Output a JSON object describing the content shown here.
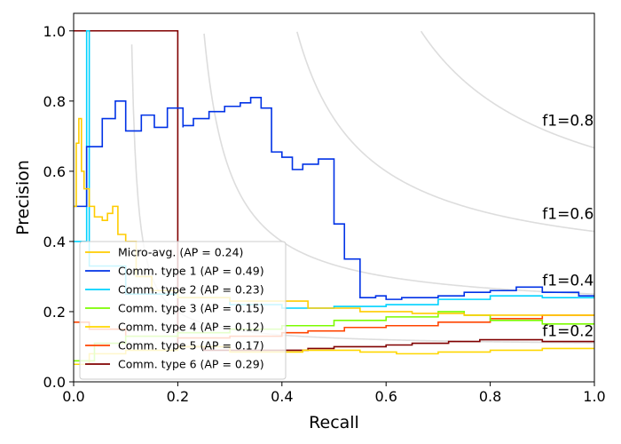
{
  "chart_data": {
    "type": "line",
    "xlabel": "Recall",
    "ylabel": "Precision",
    "xlim": [
      0.0,
      1.0
    ],
    "ylim": [
      0.0,
      1.05
    ],
    "x_ticks": [
      0.0,
      0.2,
      0.4,
      0.6,
      0.8,
      1.0
    ],
    "x_tick_labels": [
      "0.0",
      "0.2",
      "0.4",
      "0.6",
      "0.8",
      "1.0"
    ],
    "y_ticks": [
      0.0,
      0.2,
      0.4,
      0.6,
      0.8,
      1.0
    ],
    "y_tick_labels": [
      "0.0",
      "0.2",
      "0.4",
      "0.6",
      "0.8",
      "1.0"
    ],
    "legend_position": "lower-left",
    "iso_f1": {
      "color": "#dddddd",
      "curves": [
        {
          "f1": 0.2,
          "label": "f1=0.2",
          "label_y": 0.145
        },
        {
          "f1": 0.4,
          "label": "f1=0.4",
          "label_y": 0.29
        },
        {
          "f1": 0.6,
          "label": "f1=0.6",
          "label_y": 0.48
        },
        {
          "f1": 0.8,
          "label": "f1=0.8",
          "label_y": 0.745
        }
      ]
    },
    "series": [
      {
        "name": "Comm. type 6 (AP = 0.29)",
        "color": "#800000",
        "points": [
          [
            0.0,
            1.0
          ],
          [
            0.2,
            1.0
          ],
          [
            0.2,
            0.1
          ],
          [
            0.25,
            0.1
          ],
          [
            0.25,
            0.09
          ],
          [
            0.45,
            0.09
          ],
          [
            0.45,
            0.095
          ],
          [
            0.5,
            0.095
          ],
          [
            0.5,
            0.1
          ],
          [
            0.6,
            0.1
          ],
          [
            0.6,
            0.105
          ],
          [
            0.65,
            0.105
          ],
          [
            0.65,
            0.11
          ],
          [
            0.72,
            0.11
          ],
          [
            0.72,
            0.115
          ],
          [
            0.78,
            0.115
          ],
          [
            0.78,
            0.12
          ],
          [
            0.9,
            0.12
          ],
          [
            0.9,
            0.115
          ],
          [
            0.95,
            0.115
          ],
          [
            0.95,
            0.115
          ],
          [
            1.0,
            0.115
          ]
        ]
      },
      {
        "name": "Comm. type 5 (AP = 0.17)",
        "color": "#ff4500",
        "points": [
          [
            0.0,
            0.17
          ],
          [
            0.03,
            0.17
          ],
          [
            0.03,
            0.15
          ],
          [
            0.1,
            0.15
          ],
          [
            0.1,
            0.13
          ],
          [
            0.2,
            0.13
          ],
          [
            0.2,
            0.125
          ],
          [
            0.3,
            0.125
          ],
          [
            0.3,
            0.13
          ],
          [
            0.4,
            0.13
          ],
          [
            0.4,
            0.14
          ],
          [
            0.45,
            0.14
          ],
          [
            0.45,
            0.145
          ],
          [
            0.52,
            0.145
          ],
          [
            0.52,
            0.155
          ],
          [
            0.6,
            0.155
          ],
          [
            0.6,
            0.16
          ],
          [
            0.7,
            0.16
          ],
          [
            0.7,
            0.17
          ],
          [
            0.8,
            0.17
          ],
          [
            0.8,
            0.18
          ],
          [
            0.9,
            0.18
          ],
          [
            0.9,
            0.19
          ],
          [
            1.0,
            0.19
          ]
        ]
      },
      {
        "name": "Comm. type 4 (AP = 0.12)",
        "color": "#ffd700",
        "points": [
          [
            0.0,
            0.05
          ],
          [
            0.03,
            0.05
          ],
          [
            0.03,
            0.08
          ],
          [
            0.1,
            0.08
          ],
          [
            0.1,
            0.09
          ],
          [
            0.2,
            0.09
          ],
          [
            0.2,
            0.1
          ],
          [
            0.3,
            0.1
          ],
          [
            0.3,
            0.085
          ],
          [
            0.44,
            0.085
          ],
          [
            0.44,
            0.09
          ],
          [
            0.55,
            0.09
          ],
          [
            0.55,
            0.085
          ],
          [
            0.62,
            0.085
          ],
          [
            0.62,
            0.08
          ],
          [
            0.7,
            0.08
          ],
          [
            0.7,
            0.085
          ],
          [
            0.8,
            0.085
          ],
          [
            0.8,
            0.09
          ],
          [
            0.9,
            0.09
          ],
          [
            0.9,
            0.095
          ],
          [
            1.0,
            0.095
          ]
        ]
      },
      {
        "name": "Comm. type 3 (AP = 0.15)",
        "color": "#7cfc00",
        "points": [
          [
            0.0,
            0.06
          ],
          [
            0.04,
            0.06
          ],
          [
            0.04,
            0.11
          ],
          [
            0.1,
            0.11
          ],
          [
            0.1,
            0.13
          ],
          [
            0.2,
            0.13
          ],
          [
            0.2,
            0.14
          ],
          [
            0.3,
            0.14
          ],
          [
            0.3,
            0.15
          ],
          [
            0.4,
            0.15
          ],
          [
            0.4,
            0.16
          ],
          [
            0.5,
            0.16
          ],
          [
            0.5,
            0.175
          ],
          [
            0.6,
            0.175
          ],
          [
            0.6,
            0.185
          ],
          [
            0.7,
            0.185
          ],
          [
            0.7,
            0.2
          ],
          [
            0.75,
            0.2
          ],
          [
            0.75,
            0.19
          ],
          [
            0.8,
            0.19
          ],
          [
            0.8,
            0.175
          ],
          [
            0.9,
            0.175
          ],
          [
            0.9,
            0.165
          ],
          [
            1.0,
            0.165
          ]
        ]
      },
      {
        "name": "Comm. type 2 (AP = 0.23)",
        "color": "#00d2ff",
        "points": [
          [
            0.0,
            0.4
          ],
          [
            0.025,
            0.4
          ],
          [
            0.025,
            1.0
          ],
          [
            0.03,
            1.0
          ],
          [
            0.03,
            0.33
          ],
          [
            0.1,
            0.33
          ],
          [
            0.1,
            0.25
          ],
          [
            0.2,
            0.25
          ],
          [
            0.2,
            0.24
          ],
          [
            0.3,
            0.24
          ],
          [
            0.3,
            0.22
          ],
          [
            0.4,
            0.22
          ],
          [
            0.4,
            0.21
          ],
          [
            0.5,
            0.21
          ],
          [
            0.5,
            0.215
          ],
          [
            0.6,
            0.215
          ],
          [
            0.6,
            0.22
          ],
          [
            0.7,
            0.22
          ],
          [
            0.7,
            0.235
          ],
          [
            0.8,
            0.235
          ],
          [
            0.8,
            0.245
          ],
          [
            0.9,
            0.245
          ],
          [
            0.9,
            0.24
          ],
          [
            1.0,
            0.24
          ]
        ]
      },
      {
        "name": "Comm. type 1 (AP = 0.49)",
        "color": "#0032e6",
        "points": [
          [
            0.0,
            0.5
          ],
          [
            0.025,
            0.5
          ],
          [
            0.025,
            0.67
          ],
          [
            0.055,
            0.67
          ],
          [
            0.055,
            0.75
          ],
          [
            0.08,
            0.75
          ],
          [
            0.08,
            0.8
          ],
          [
            0.1,
            0.8
          ],
          [
            0.1,
            0.715
          ],
          [
            0.13,
            0.715
          ],
          [
            0.13,
            0.76
          ],
          [
            0.155,
            0.76
          ],
          [
            0.155,
            0.725
          ],
          [
            0.18,
            0.725
          ],
          [
            0.18,
            0.78
          ],
          [
            0.21,
            0.78
          ],
          [
            0.21,
            0.725
          ],
          [
            0.21,
            0.725
          ],
          [
            0.21,
            0.73
          ],
          [
            0.23,
            0.73
          ],
          [
            0.23,
            0.75
          ],
          [
            0.26,
            0.75
          ],
          [
            0.26,
            0.77
          ],
          [
            0.29,
            0.77
          ],
          [
            0.29,
            0.785
          ],
          [
            0.32,
            0.785
          ],
          [
            0.32,
            0.795
          ],
          [
            0.34,
            0.795
          ],
          [
            0.34,
            0.81
          ],
          [
            0.36,
            0.81
          ],
          [
            0.36,
            0.78
          ],
          [
            0.38,
            0.78
          ],
          [
            0.38,
            0.655
          ],
          [
            0.4,
            0.655
          ],
          [
            0.4,
            0.64
          ],
          [
            0.42,
            0.64
          ],
          [
            0.42,
            0.605
          ],
          [
            0.44,
            0.605
          ],
          [
            0.44,
            0.62
          ],
          [
            0.47,
            0.62
          ],
          [
            0.47,
            0.635
          ],
          [
            0.5,
            0.635
          ],
          [
            0.5,
            0.45
          ],
          [
            0.52,
            0.45
          ],
          [
            0.52,
            0.35
          ],
          [
            0.55,
            0.35
          ],
          [
            0.55,
            0.24
          ],
          [
            0.58,
            0.24
          ],
          [
            0.58,
            0.245
          ],
          [
            0.6,
            0.245
          ],
          [
            0.6,
            0.235
          ],
          [
            0.63,
            0.235
          ],
          [
            0.63,
            0.24
          ],
          [
            0.7,
            0.24
          ],
          [
            0.7,
            0.245
          ],
          [
            0.75,
            0.245
          ],
          [
            0.75,
            0.255
          ],
          [
            0.8,
            0.255
          ],
          [
            0.8,
            0.26
          ],
          [
            0.85,
            0.26
          ],
          [
            0.85,
            0.27
          ],
          [
            0.9,
            0.27
          ],
          [
            0.9,
            0.255
          ],
          [
            0.97,
            0.255
          ],
          [
            0.97,
            0.245
          ],
          [
            1.0,
            0.245
          ]
        ]
      },
      {
        "name": "Micro-avg. (AP = 0.24)",
        "color": "#ffcc00",
        "points": [
          [
            0.0,
            0.5
          ],
          [
            0.005,
            0.5
          ],
          [
            0.005,
            0.68
          ],
          [
            0.01,
            0.68
          ],
          [
            0.01,
            0.75
          ],
          [
            0.015,
            0.75
          ],
          [
            0.015,
            0.6
          ],
          [
            0.02,
            0.6
          ],
          [
            0.02,
            0.55
          ],
          [
            0.03,
            0.55
          ],
          [
            0.03,
            0.5
          ],
          [
            0.04,
            0.5
          ],
          [
            0.04,
            0.47
          ],
          [
            0.055,
            0.47
          ],
          [
            0.055,
            0.46
          ],
          [
            0.065,
            0.46
          ],
          [
            0.065,
            0.48
          ],
          [
            0.075,
            0.48
          ],
          [
            0.075,
            0.5
          ],
          [
            0.085,
            0.5
          ],
          [
            0.085,
            0.42
          ],
          [
            0.1,
            0.42
          ],
          [
            0.1,
            0.4
          ],
          [
            0.12,
            0.4
          ],
          [
            0.12,
            0.3
          ],
          [
            0.15,
            0.3
          ],
          [
            0.15,
            0.26
          ],
          [
            0.2,
            0.26
          ],
          [
            0.2,
            0.24
          ],
          [
            0.3,
            0.24
          ],
          [
            0.3,
            0.23
          ],
          [
            0.45,
            0.23
          ],
          [
            0.45,
            0.21
          ],
          [
            0.55,
            0.21
          ],
          [
            0.55,
            0.2
          ],
          [
            0.65,
            0.2
          ],
          [
            0.65,
            0.195
          ],
          [
            0.75,
            0.195
          ],
          [
            0.75,
            0.19
          ],
          [
            0.85,
            0.19
          ],
          [
            0.85,
            0.19
          ],
          [
            1.0,
            0.19
          ]
        ]
      }
    ],
    "legend_order": [
      "Micro-avg. (AP = 0.24)",
      "Comm. type 1 (AP = 0.49)",
      "Comm. type 2 (AP = 0.23)",
      "Comm. type 3 (AP = 0.15)",
      "Comm. type 4 (AP = 0.12)",
      "Comm. type 5 (AP = 0.17)",
      "Comm. type 6 (AP = 0.29)"
    ]
  }
}
